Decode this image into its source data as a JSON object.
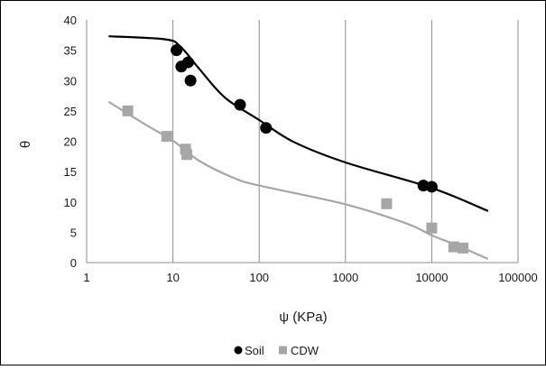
{
  "chart_data": {
    "type": "scatter",
    "x_scale": "log",
    "xlim": [
      1,
      100000
    ],
    "ylim": [
      0,
      40
    ],
    "x_ticks": [
      "1",
      "10",
      "100",
      "1000",
      "10000",
      "100000"
    ],
    "y_ticks": [
      "0",
      "5",
      "10",
      "15",
      "20",
      "25",
      "30",
      "35",
      "40"
    ],
    "xlabel": "ψ (KPa)",
    "ylabel": "θ",
    "grid": "vertical",
    "legend": "bottom",
    "series": [
      {
        "name": "Soil",
        "marker": "circle",
        "color": "#000000",
        "points": [
          {
            "x": 11,
            "y": 35
          },
          {
            "x": 12.5,
            "y": 32.3
          },
          {
            "x": 15,
            "y": 33
          },
          {
            "x": 16,
            "y": 30
          },
          {
            "x": 60,
            "y": 26
          },
          {
            "x": 120,
            "y": 22.2
          },
          {
            "x": 8000,
            "y": 12.7
          },
          {
            "x": 10000,
            "y": 12.5
          }
        ],
        "fit_curve": [
          {
            "x": 1.8,
            "y": 37.3
          },
          {
            "x": 8,
            "y": 36.8
          },
          {
            "x": 12,
            "y": 35.7
          },
          {
            "x": 20,
            "y": 32
          },
          {
            "x": 40,
            "y": 27.2
          },
          {
            "x": 100,
            "y": 23.5
          },
          {
            "x": 250,
            "y": 19.9
          },
          {
            "x": 1000,
            "y": 16.5
          },
          {
            "x": 10000,
            "y": 12.3
          },
          {
            "x": 45000,
            "y": 8.5
          }
        ]
      },
      {
        "name": "CDW",
        "marker": "square",
        "color": "#a6a6a6",
        "points": [
          {
            "x": 3,
            "y": 25
          },
          {
            "x": 8.5,
            "y": 20.8
          },
          {
            "x": 14,
            "y": 18.7
          },
          {
            "x": 14.5,
            "y": 17.8
          },
          {
            "x": 3000,
            "y": 9.7
          },
          {
            "x": 10000,
            "y": 5.7
          },
          {
            "x": 18000,
            "y": 2.6
          },
          {
            "x": 23000,
            "y": 2.4
          }
        ],
        "fit_curve": [
          {
            "x": 1.8,
            "y": 26.5
          },
          {
            "x": 5,
            "y": 22.6
          },
          {
            "x": 10,
            "y": 20.1
          },
          {
            "x": 20,
            "y": 16.8
          },
          {
            "x": 50,
            "y": 14
          },
          {
            "x": 100,
            "y": 12.7
          },
          {
            "x": 1000,
            "y": 9.6
          },
          {
            "x": 5000,
            "y": 6.5
          },
          {
            "x": 10000,
            "y": 4.5
          },
          {
            "x": 20000,
            "y": 2.8
          },
          {
            "x": 45000,
            "y": 0.6
          }
        ]
      }
    ]
  }
}
